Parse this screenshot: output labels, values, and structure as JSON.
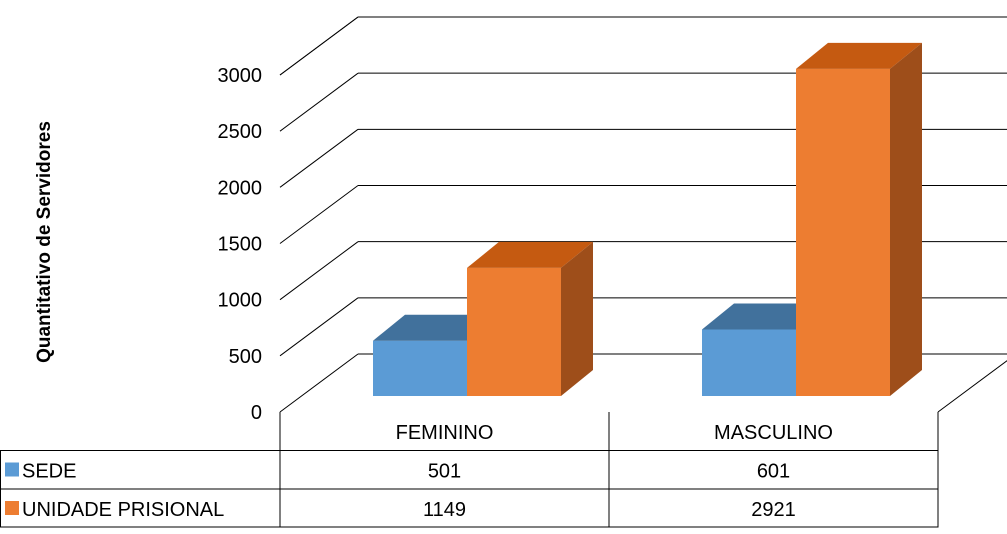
{
  "chart_data": {
    "type": "bar",
    "style": "3d-clustered-column",
    "ylabel": "Quantitativo de Servidores",
    "xlabel": "",
    "title": "",
    "categories": [
      "FEMININO",
      "MASCULINO"
    ],
    "series": [
      {
        "name": "SEDE",
        "values": [
          501,
          601
        ],
        "color": "#5B9BD5",
        "top_color": "#41719C",
        "side_color": "#3F6E9B"
      },
      {
        "name": "UNIDADE PRISIONAL",
        "values": [
          1149,
          2921
        ],
        "color": "#ED7D31",
        "top_color": "#C55A11",
        "side_color": "#9E4E1A"
      }
    ],
    "yticks": [
      "0",
      "500",
      "1000",
      "1500",
      "2000",
      "2500",
      "3000"
    ],
    "ylim": [
      0,
      3000
    ],
    "grid": true,
    "legend": "data-table"
  }
}
